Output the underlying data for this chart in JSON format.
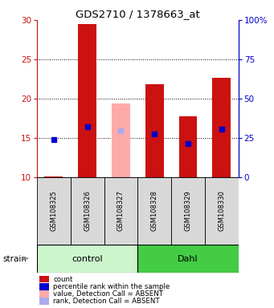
{
  "title": "GDS2710 / 1378663_at",
  "samples": [
    "GSM108325",
    "GSM108326",
    "GSM108327",
    "GSM108328",
    "GSM108329",
    "GSM108330"
  ],
  "bar_values": [
    10.1,
    29.5,
    19.4,
    21.8,
    17.7,
    22.6
  ],
  "bar_bottom": [
    10.0,
    10.0,
    10.0,
    10.0,
    10.0,
    10.0
  ],
  "rank_values": [
    14.8,
    16.4,
    15.9,
    15.5,
    14.3,
    16.1
  ],
  "absent_flags": [
    false,
    false,
    true,
    false,
    false,
    false
  ],
  "groups": [
    {
      "label": "control",
      "span": [
        0,
        3
      ],
      "color": "#ccf5cc"
    },
    {
      "label": "Dahl",
      "span": [
        3,
        6
      ],
      "color": "#44cc44"
    }
  ],
  "strain_label": "strain",
  "ylim_left": [
    10,
    30
  ],
  "ylim_right": [
    0,
    100
  ],
  "yticks_left": [
    10,
    15,
    20,
    25,
    30
  ],
  "yticks_right": [
    0,
    25,
    50,
    75,
    100
  ],
  "ytick_labels_right": [
    "0",
    "25",
    "50",
    "75",
    "100%"
  ],
  "bar_color_present": "#cc1111",
  "bar_color_absent": "#ffaaaa",
  "rank_color_present": "#0000cc",
  "rank_color_absent": "#aaaaee",
  "left_axis_color": "#cc1111",
  "right_axis_color": "#0000cc",
  "bar_width": 0.55,
  "legend_items": [
    {
      "color": "#cc1111",
      "label": "count"
    },
    {
      "color": "#0000cc",
      "label": "percentile rank within the sample"
    },
    {
      "color": "#ffaaaa",
      "label": "value, Detection Call = ABSENT"
    },
    {
      "color": "#aaaaee",
      "label": "rank, Detection Call = ABSENT"
    }
  ],
  "sample_box_color": "#d8d8d8",
  "plot_bg_color": "#ffffff",
  "fig_bg_color": "#ffffff"
}
